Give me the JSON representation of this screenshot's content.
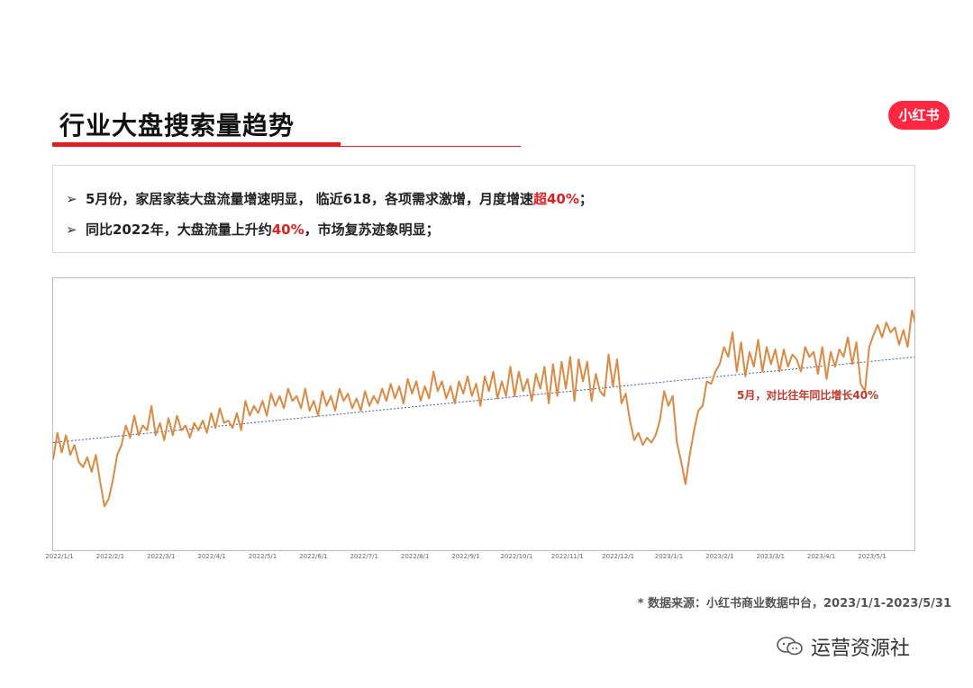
{
  "page": {
    "title": "行业大盘搜索量趋势",
    "logo_text": "小红书",
    "brand_color": "#ff2741",
    "accent_color": "#e02020",
    "bullets": [
      {
        "arrow": "➢",
        "text_a": "5月份，家居家装大盘流量增速明显，  临近618，各项需求激增，月度增速",
        "highlight": "超40%",
        "text_b": "；"
      },
      {
        "arrow": "➢",
        "text_a": "同比2022年，大盘流量上升约",
        "highlight": "40%",
        "text_b": "，市场复苏迹象明显；"
      }
    ],
    "source_note": "* 数据来源：小红书商业数据中台，2023/1/1-2023/5/31",
    "watermark": "运营资源社"
  },
  "chart_data": {
    "type": "line",
    "title": "",
    "xlabel": "",
    "ylabel": "",
    "x_ticks": [
      "2022/1/1",
      "2022/2/1",
      "2022/3/1",
      "2022/4/1",
      "2022/5/1",
      "2022/6/1",
      "2022/7/1",
      "2022/8/1",
      "2022/9/1",
      "2022/10/1",
      "2022/11/1",
      "2022/12/1",
      "2023/1/1",
      "2023/2/1",
      "2023/3/1",
      "2023/4/1",
      "2023/5/1"
    ],
    "ylim": [
      0,
      100
    ],
    "grid": false,
    "line_color": "#d98b45",
    "trend_color": "#3b5aa8",
    "annotation": "5月，对比往年同比增长40%",
    "series": [
      {
        "values": [
          34,
          45,
          37,
          44,
          36,
          40,
          33,
          31,
          35,
          29,
          36,
          25,
          15,
          18,
          26,
          36,
          40,
          48,
          43,
          52,
          44,
          48,
          46,
          56,
          44,
          49,
          42,
          51,
          44,
          52,
          46,
          48,
          43,
          49,
          46,
          50,
          45,
          53,
          47,
          55,
          49,
          50,
          47,
          53,
          46,
          58,
          52,
          56,
          53,
          58,
          52,
          61,
          56,
          60,
          55,
          63,
          58,
          60,
          55,
          63,
          54,
          58,
          52,
          62,
          56,
          60,
          54,
          63,
          58,
          61,
          55,
          59,
          54,
          62,
          56,
          60,
          57,
          63,
          58,
          65,
          59,
          64,
          57,
          67,
          61,
          66,
          58,
          64,
          59,
          70,
          62,
          66,
          59,
          64,
          57,
          66,
          61,
          68,
          60,
          65,
          56,
          68,
          62,
          70,
          59,
          66,
          60,
          72,
          60,
          70,
          62,
          67,
          58,
          69,
          63,
          72,
          57,
          73,
          60,
          74,
          63,
          76,
          58,
          75,
          66,
          74,
          58,
          69,
          62,
          60,
          77,
          64,
          75,
          57,
          61,
          50,
          42,
          45,
          40,
          43,
          41,
          44,
          50,
          62,
          56,
          60,
          41,
          33,
          24,
          36,
          46,
          54,
          56,
          66,
          65,
          70,
          73,
          80,
          76,
          86,
          70,
          82,
          68,
          78,
          72,
          83,
          70,
          80,
          73,
          79,
          70,
          79,
          72,
          77,
          75,
          70,
          80,
          76,
          78,
          69,
          80,
          67,
          78,
          72,
          79,
          76,
          84,
          73,
          82,
          65,
          62,
          80,
          85,
          89,
          84,
          90,
          86,
          88,
          81,
          87,
          80,
          95,
          88
        ],
        "trend_start": 41,
        "trend_end": 76
      }
    ]
  }
}
